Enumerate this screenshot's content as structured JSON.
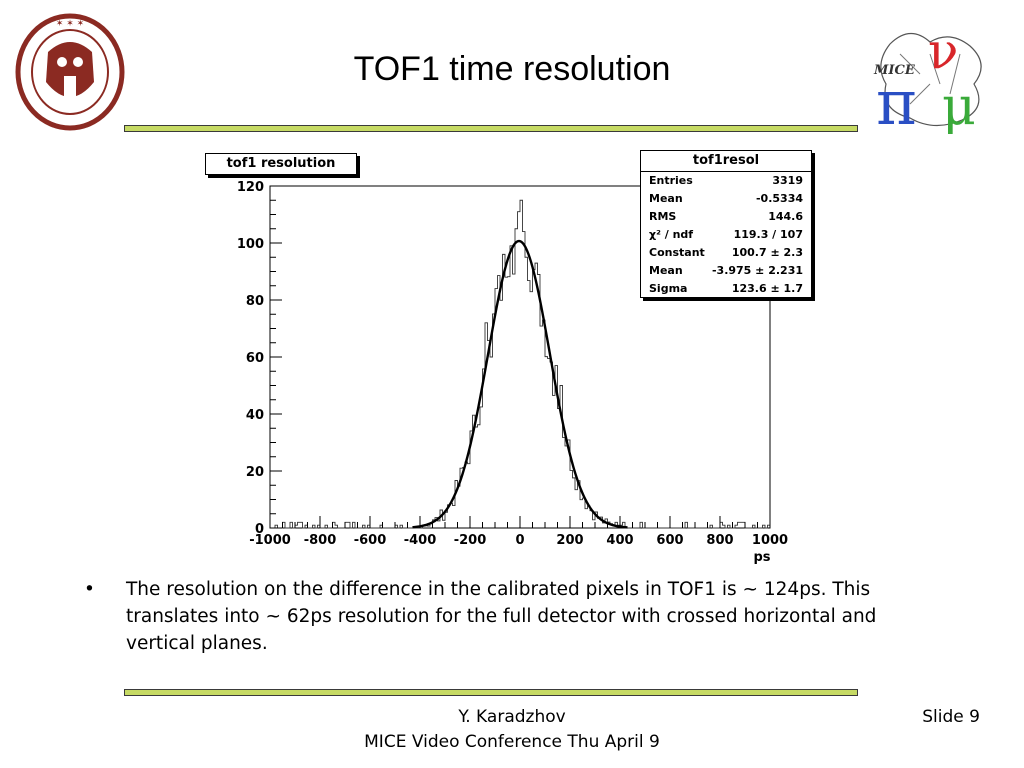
{
  "slide": {
    "title": "TOF1 time resolution",
    "bullet": "The resolution on the difference in the calibrated pixels in TOF1 is ~ 124ps. This translates into ~ 62ps resolution for the full detector with crossed horizontal and vertical planes.",
    "footer_author": "Y. Karadzhov",
    "footer_event": "MICE Video Conference Thu April 9",
    "slide_label": "Slide",
    "slide_number": "9"
  },
  "logos": {
    "left": "university-seal",
    "right_text": "MICE"
  },
  "colors": {
    "rule": "#c6da64",
    "seal": "#8b2a22",
    "mice_red": "#d8262a",
    "mice_blue": "#2a4fc4",
    "mice_green": "#3aaa3a"
  },
  "chart_data": {
    "type": "bar",
    "title": "tof1 resolution",
    "xlabel": "ps",
    "ylabel": "",
    "xlim": [
      -1000,
      1000
    ],
    "ylim": [
      0,
      120
    ],
    "xticks": [
      -1000,
      -800,
      -600,
      -400,
      -200,
      0,
      200,
      400,
      600,
      800,
      1000
    ],
    "yticks": [
      0,
      20,
      40,
      60,
      80,
      100,
      120
    ],
    "grid": false,
    "stats": {
      "name": "tof1resol",
      "rows": [
        {
          "label": "Entries",
          "value": "3319"
        },
        {
          "label": "Mean",
          "value": "-0.5334"
        },
        {
          "label": "RMS",
          "value": "144.6"
        },
        {
          "label": "χ² / ndf",
          "value": "119.3 / 107"
        },
        {
          "label": "Constant",
          "value": "100.7 ± 2.3"
        },
        {
          "label": "Mean",
          "value": "-3.975 ± 2.231"
        },
        {
          "label": "Sigma",
          "value": "123.6 ± 1.7"
        }
      ]
    },
    "fit": {
      "type": "gaussian",
      "constant": 100.7,
      "mean": -3.975,
      "sigma": 123.6
    },
    "histogram": {
      "bin_width": 10,
      "x_start": -1000,
      "peak_counts": {
        "-60": 88,
        "-40": 99,
        "-20": 105,
        "-10": 111,
        "0": 115,
        "10": 104,
        "20": 95,
        "-140": 72,
        "-120": 60,
        "-100": 84,
        "140": 57,
        "160": 50
      }
    }
  }
}
